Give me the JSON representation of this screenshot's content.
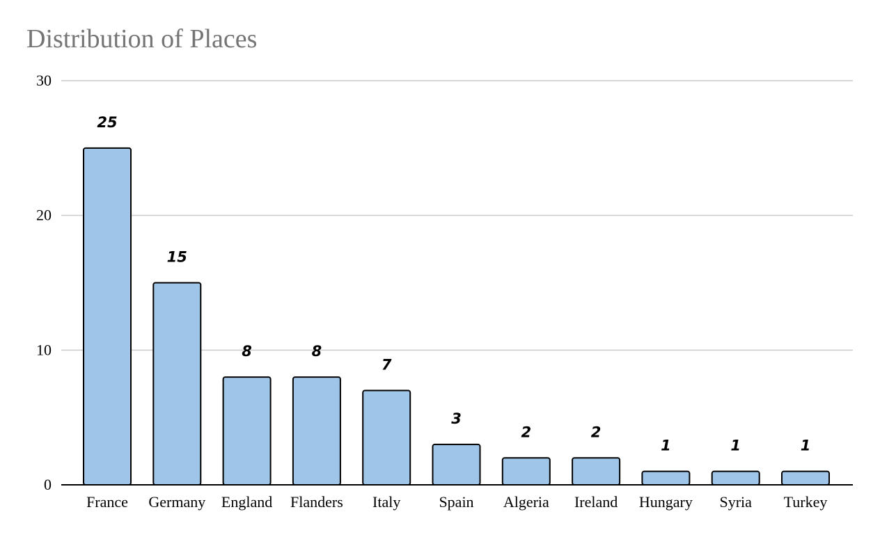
{
  "chart_data": {
    "type": "bar",
    "title": "Distribution of Places",
    "xlabel": "",
    "ylabel": "",
    "categories": [
      "France",
      "Germany",
      "England",
      "Flanders",
      "Italy",
      "Spain",
      "Algeria",
      "Ireland",
      "Hungary",
      "Syria",
      "Turkey"
    ],
    "values": [
      25,
      15,
      8,
      8,
      7,
      3,
      2,
      2,
      1,
      1,
      1
    ],
    "ylim": [
      0,
      30
    ],
    "yticks": [
      0,
      10,
      20,
      30
    ],
    "data_labels": true,
    "grid": true,
    "legend": "none",
    "colors": {
      "bar_fill": "#9fc5e8",
      "bar_stroke": "#000000",
      "grid": "#cccccc",
      "axis": "#000000",
      "title": "#757575"
    }
  }
}
